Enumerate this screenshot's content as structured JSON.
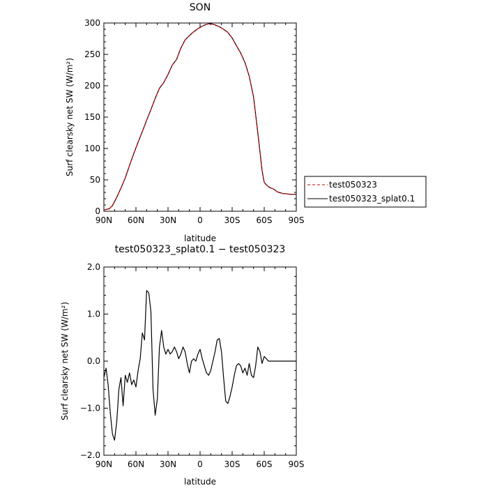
{
  "chart_data": [
    {
      "type": "line",
      "title": "SON",
      "xlabel": "latitude",
      "ylabel": "Surf clearsky net SW (W/m²)",
      "xlim": [
        90,
        -90
      ],
      "ylim": [
        0,
        300
      ],
      "x_tick_values": [
        90,
        60,
        30,
        0,
        -30,
        -60,
        -90
      ],
      "x_tick_labels": [
        "90N",
        "60N",
        "30N",
        "0",
        "30S",
        "60S",
        "90S"
      ],
      "y_tick_values": [
        0,
        50,
        100,
        150,
        200,
        250,
        300
      ],
      "y_tick_labels": [
        "0",
        "50",
        "100",
        "150",
        "200",
        "250",
        "300"
      ],
      "legend_position": "right",
      "series": [
        {
          "name": "test050323",
          "color": "#cc0000",
          "dash": "dashed",
          "x": [
            90,
            85,
            82,
            78,
            74,
            70,
            66,
            62,
            58,
            54,
            50,
            46,
            42,
            38,
            34,
            30,
            26,
            22,
            18,
            14,
            10,
            6,
            2,
            -2,
            -6,
            -10,
            -14,
            -18,
            -22,
            -26,
            -30,
            -34,
            -38,
            -42,
            -46,
            -50,
            -54,
            -56,
            -58,
            -60,
            -62,
            -64,
            -66,
            -68,
            -70,
            -72,
            -74,
            -76,
            -78,
            -80,
            -84,
            -88,
            -90
          ],
          "y": [
            2,
            4,
            9,
            22,
            37,
            53,
            73,
            92,
            110,
            127,
            145,
            162,
            180,
            196,
            205,
            218,
            233,
            242,
            260,
            273,
            280,
            286,
            291,
            295,
            298,
            299,
            297,
            294,
            290,
            285,
            276,
            264,
            252,
            237,
            215,
            182,
            125,
            95,
            65,
            46,
            42,
            39,
            37,
            36,
            34,
            31,
            30,
            29,
            28,
            28,
            27,
            27,
            27
          ]
        },
        {
          "name": "test050323_splat0.1",
          "color": "#000000",
          "dash": "solid",
          "x": [
            90,
            85,
            82,
            78,
            74,
            70,
            66,
            62,
            58,
            54,
            50,
            46,
            42,
            38,
            34,
            30,
            26,
            22,
            18,
            14,
            10,
            6,
            2,
            -2,
            -6,
            -10,
            -14,
            -18,
            -22,
            -26,
            -30,
            -34,
            -38,
            -42,
            -46,
            -50,
            -54,
            -56,
            -58,
            -60,
            -62,
            -64,
            -66,
            -68,
            -70,
            -72,
            -74,
            -76,
            -78,
            -80,
            -84,
            -88,
            -90
          ],
          "y": [
            2,
            4,
            9,
            22,
            37,
            53,
            73,
            92,
            110,
            127,
            145,
            162,
            180,
            196,
            205,
            218,
            233,
            242,
            260,
            273,
            280,
            286,
            291,
            295,
            298,
            299,
            297,
            294,
            290,
            285,
            276,
            264,
            252,
            237,
            215,
            182,
            125,
            95,
            65,
            46,
            42,
            39,
            37,
            36,
            34,
            31,
            30,
            29,
            28,
            28,
            27,
            27,
            27
          ]
        }
      ]
    },
    {
      "type": "line",
      "title": "test050323_splat0.1 − test050323",
      "xlabel": "latitude",
      "ylabel": "Surf clearsky net SW (W/m²)",
      "xlim": [
        90,
        -90
      ],
      "ylim": [
        -2.0,
        2.0
      ],
      "x_tick_values": [
        90,
        60,
        30,
        0,
        -30,
        -60,
        -90
      ],
      "x_tick_labels": [
        "90N",
        "60N",
        "30N",
        "0",
        "30S",
        "60S",
        "90S"
      ],
      "y_tick_values": [
        -2.0,
        -1.0,
        0.0,
        1.0,
        2.0
      ],
      "y_tick_labels": [
        "−2.0",
        "−1.0",
        "0.0",
        "1.0",
        "2.0"
      ],
      "series": [
        {
          "color": "#000000",
          "dash": "solid",
          "x": [
            90,
            88,
            86,
            84,
            82,
            80,
            78,
            76,
            74,
            72,
            70,
            68,
            66,
            64,
            62,
            60,
            58,
            56,
            54,
            52,
            50,
            48,
            46,
            44,
            42,
            40,
            38,
            36,
            34,
            32,
            30,
            28,
            26,
            24,
            22,
            20,
            18,
            16,
            14,
            12,
            10,
            8,
            6,
            4,
            2,
            0,
            -2,
            -4,
            -6,
            -8,
            -10,
            -12,
            -14,
            -16,
            -18,
            -20,
            -22,
            -24,
            -26,
            -28,
            -30,
            -32,
            -34,
            -36,
            -38,
            -40,
            -42,
            -44,
            -46,
            -48,
            -50,
            -52,
            -54,
            -56,
            -58,
            -60,
            -62,
            -64,
            -66,
            -68,
            -70,
            -72,
            -74,
            -76,
            -78,
            -80,
            -82,
            -84,
            -86,
            -88,
            -90
          ],
          "y": [
            -0.35,
            -0.15,
            -0.5,
            -1.1,
            -1.55,
            -1.68,
            -1.3,
            -0.6,
            -0.35,
            -0.95,
            -0.3,
            -0.45,
            -0.25,
            -0.5,
            -0.4,
            -0.55,
            -0.2,
            0.05,
            0.6,
            0.45,
            1.5,
            1.45,
            1.05,
            -0.6,
            -1.15,
            -0.8,
            0.3,
            0.65,
            0.3,
            0.15,
            0.25,
            0.15,
            0.2,
            0.3,
            0.2,
            0.05,
            0.15,
            0.3,
            0.2,
            -0.05,
            -0.25,
            0.0,
            0.05,
            0.0,
            0.15,
            0.25,
            0.05,
            -0.1,
            -0.25,
            -0.3,
            -0.2,
            0.0,
            0.2,
            0.45,
            0.48,
            0.2,
            -0.35,
            -0.85,
            -0.9,
            -0.75,
            -0.55,
            -0.3,
            -0.1,
            -0.05,
            -0.1,
            -0.25,
            -0.15,
            -0.3,
            -0.05,
            -0.3,
            -0.35,
            -0.1,
            0.3,
            0.2,
            -0.05,
            0.1,
            0.05,
            0.0,
            0.0,
            0.0,
            0.0,
            0.0,
            0.0,
            0.0,
            0.0,
            0.0,
            0.0,
            0.0,
            0.0,
            0.0,
            0.0
          ]
        }
      ]
    }
  ]
}
